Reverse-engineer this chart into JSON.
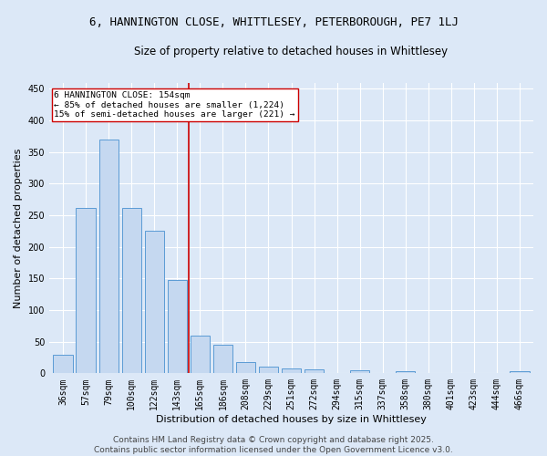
{
  "title": "6, HANNINGTON CLOSE, WHITTLESEY, PETERBOROUGH, PE7 1LJ",
  "subtitle": "Size of property relative to detached houses in Whittlesey",
  "xlabel": "Distribution of detached houses by size in Whittlesey",
  "ylabel": "Number of detached properties",
  "categories": [
    "36sqm",
    "57sqm",
    "79sqm",
    "100sqm",
    "122sqm",
    "143sqm",
    "165sqm",
    "186sqm",
    "208sqm",
    "229sqm",
    "251sqm",
    "272sqm",
    "294sqm",
    "315sqm",
    "337sqm",
    "358sqm",
    "380sqm",
    "401sqm",
    "423sqm",
    "444sqm",
    "466sqm"
  ],
  "values": [
    30,
    262,
    370,
    262,
    226,
    148,
    60,
    45,
    18,
    10,
    8,
    6,
    0,
    5,
    0,
    3,
    0,
    0,
    0,
    0,
    4
  ],
  "bar_color": "#c5d8f0",
  "bar_edge_color": "#5b9bd5",
  "ylim": [
    0,
    460
  ],
  "yticks": [
    0,
    50,
    100,
    150,
    200,
    250,
    300,
    350,
    400,
    450
  ],
  "vline_x": 5.5,
  "vline_color": "#cc0000",
  "annotation_text": "6 HANNINGTON CLOSE: 154sqm\n← 85% of detached houses are smaller (1,224)\n15% of semi-detached houses are larger (221) →",
  "annotation_box_color": "#ffffff",
  "annotation_box_edge": "#cc0000",
  "footer_line1": "Contains HM Land Registry data © Crown copyright and database right 2025.",
  "footer_line2": "Contains public sector information licensed under the Open Government Licence v3.0.",
  "bg_color": "#dce8f7",
  "plot_bg_color": "#dce8f7",
  "grid_color": "#ffffff",
  "title_fontsize": 9,
  "subtitle_fontsize": 8.5,
  "axis_label_fontsize": 8,
  "tick_fontsize": 7,
  "footer_fontsize": 6.5
}
